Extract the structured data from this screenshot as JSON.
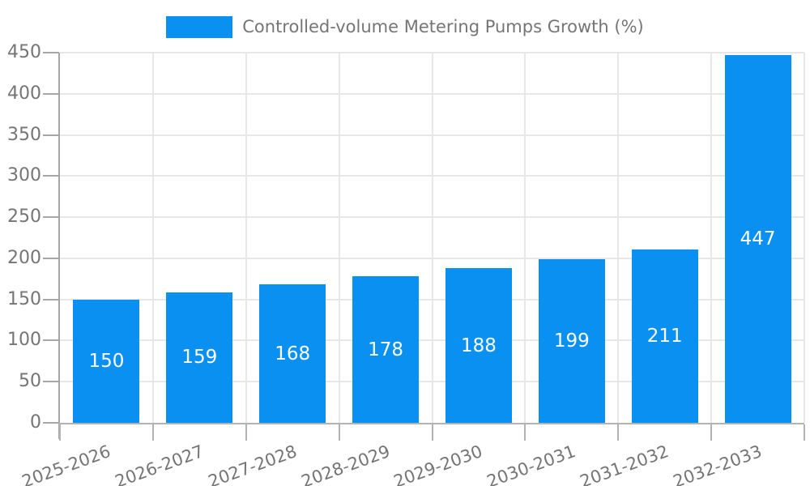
{
  "chart_data": {
    "type": "bar",
    "title": "Controlled-volume Metering Pumps Growth (%)",
    "legend": [
      {
        "label": "Controlled-volume Metering Pumps Growth (%)",
        "color": "#0a90f0"
      }
    ],
    "legend_position": "top",
    "categories": [
      "2025-2026",
      "2026-2027",
      "2027-2028",
      "2028-2029",
      "2029-2030",
      "2030-2031",
      "2031-2032",
      "2032-2033"
    ],
    "series": [
      {
        "name": "Controlled-volume Metering Pumps Growth (%)",
        "values": [
          150,
          159,
          168,
          178,
          188,
          199,
          211,
          447
        ]
      }
    ],
    "bar_value_labels": [
      "150",
      "159",
      "168",
      "178",
      "188",
      "199",
      "211",
      "447"
    ],
    "xlabel": "",
    "ylabel": "",
    "ylim": [
      0,
      450
    ],
    "ytick_step": 50,
    "yticks": [
      0,
      50,
      100,
      150,
      200,
      250,
      300,
      350,
      400,
      450
    ],
    "grid": true,
    "colors": {
      "bar": "#0a90f0",
      "bar_label_text": "#ffffff",
      "axis_text": "#757575",
      "gridline": "#e7e7e7",
      "axis_line": "#a6a6a6",
      "background": "#ffffff"
    }
  }
}
